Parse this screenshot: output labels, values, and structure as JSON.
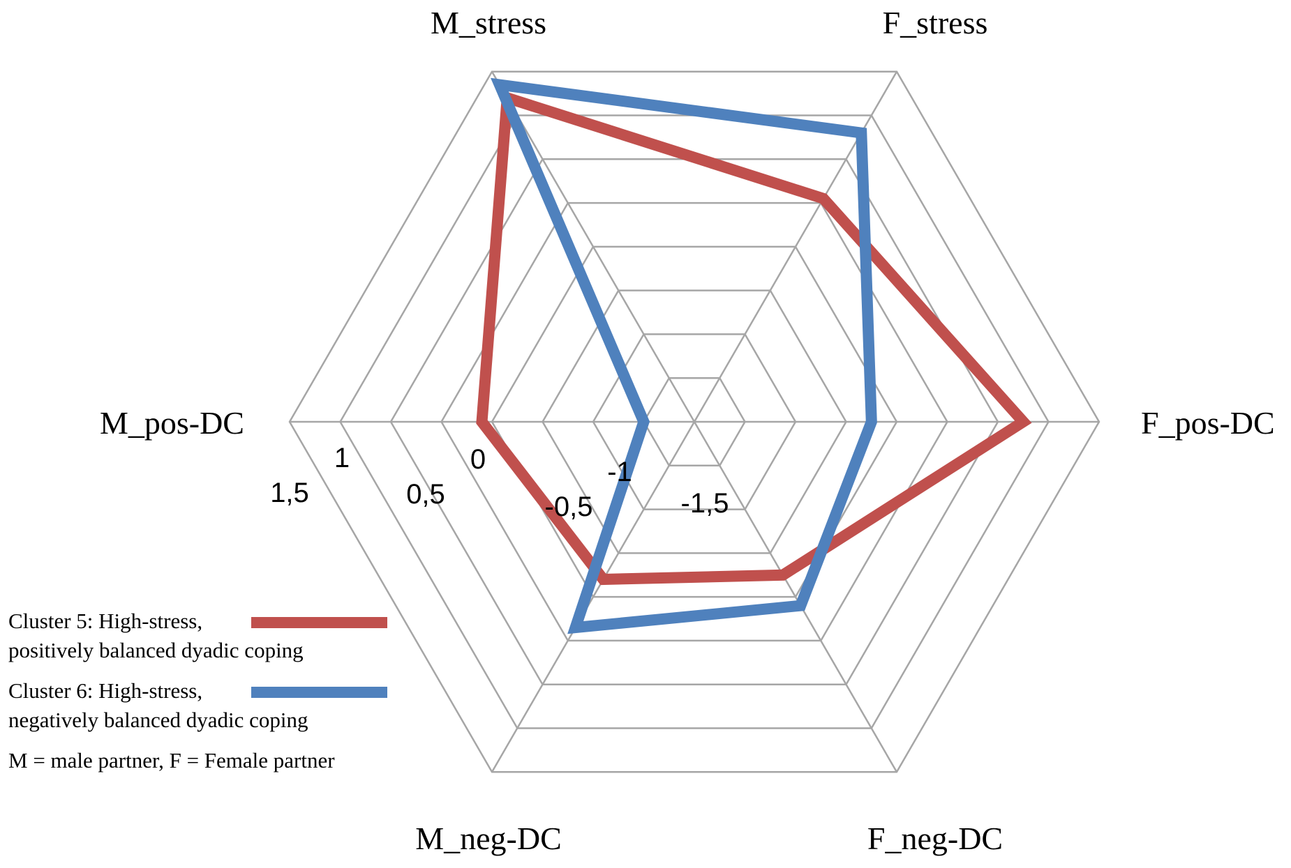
{
  "chart_data": {
    "type": "radar",
    "axes": [
      "M_stress",
      "F_stress",
      "F_pos-DC",
      "F_neg-DC",
      "M_neg-DC",
      "M_pos-DC"
    ],
    "rlim": [
      -2,
      2
    ],
    "tick_labels": [
      "-1,5",
      "-1",
      "-0,5",
      "0",
      "0,5",
      "1",
      "1,5"
    ],
    "series": [
      {
        "name": "Cluster 5: High-stress, positively balanced dyadic coping",
        "color": "#c0504d",
        "values": [
          1.7,
          0.55,
          1.25,
          -0.25,
          -0.2,
          0.1
        ]
      },
      {
        "name": "Cluster 6: High-stress, negatively balanced dyadic coping",
        "color": "#4f81bd",
        "values": [
          1.85,
          1.3,
          -0.25,
          0.1,
          0.35,
          -1.5
        ]
      }
    ],
    "grid": "hexagonal",
    "legend_position": "bottom-left"
  },
  "legend": {
    "items": [
      {
        "line1": "Cluster 5: High-stress,",
        "line2": "positively balanced dyadic coping",
        "color": "#c0504d"
      },
      {
        "line1": "Cluster 6: High-stress,",
        "line2": "negatively balanced dyadic coping",
        "color": "#4f81bd"
      }
    ],
    "note": "M = male partner, F = Female partner"
  }
}
